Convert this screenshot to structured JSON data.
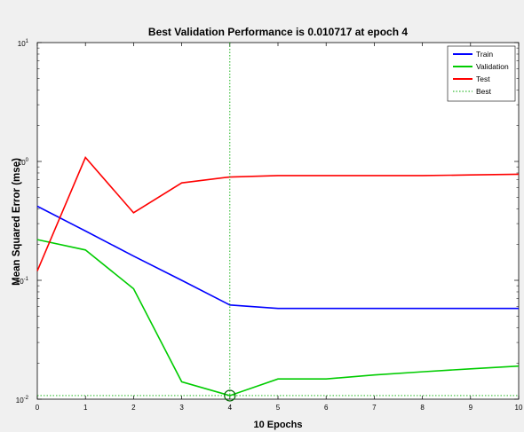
{
  "chart_data": {
    "type": "line",
    "title": "Best Validation Performance is 0.010717 at epoch 4",
    "xlabel": "10 Epochs",
    "ylabel": "Mean Squared Error  (mse)",
    "xlim": [
      0,
      10
    ],
    "ylim": [
      0.01,
      10
    ],
    "yscale": "log",
    "grid": false,
    "legend_position": "top-right",
    "x_ticks": [
      "0",
      "1",
      "2",
      "3",
      "4",
      "5",
      "6",
      "7",
      "8",
      "9",
      "10"
    ],
    "y_ticks": [
      {
        "value": 0.01,
        "base": "10",
        "exp": "-2"
      },
      {
        "value": 0.1,
        "base": "10",
        "exp": "-1"
      },
      {
        "value": 1,
        "base": "10",
        "exp": "0"
      },
      {
        "value": 10,
        "base": "10",
        "exp": "1"
      }
    ],
    "x": [
      0,
      1,
      2,
      3,
      4,
      5,
      6,
      7,
      8,
      9,
      10
    ],
    "series": [
      {
        "name": "Train",
        "color": "#0000ff",
        "style": "solid",
        "values": [
          0.42,
          0.26,
          0.16,
          0.1,
          0.062,
          0.058,
          0.058,
          0.058,
          0.058,
          0.058,
          0.058
        ]
      },
      {
        "name": "Validation",
        "color": "#00cc00",
        "style": "solid",
        "values": [
          0.22,
          0.18,
          0.085,
          0.014,
          0.010717,
          0.0148,
          0.0148,
          0.016,
          0.017,
          0.018,
          0.019
        ]
      },
      {
        "name": "Test",
        "color": "#ff0000",
        "style": "solid",
        "values": [
          0.12,
          1.08,
          0.37,
          0.66,
          0.74,
          0.76,
          0.76,
          0.76,
          0.76,
          0.77,
          0.78
        ]
      },
      {
        "name": "Best",
        "color": "#00aa00",
        "style": "dotted",
        "best_epoch": 4,
        "best_value": 0.010717
      }
    ]
  }
}
